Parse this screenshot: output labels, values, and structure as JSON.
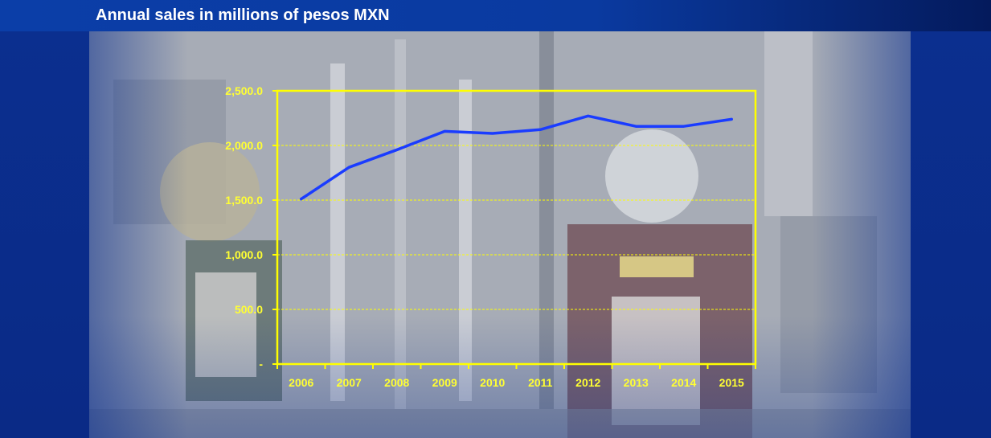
{
  "header": {
    "title": "Annual sales in millions of pesos MXN"
  },
  "colors": {
    "header_bg": "#0b3ea8",
    "axis": "#ffff00",
    "grid": "#ffff00",
    "line": "#1a3cff",
    "tick_text": "#ffff33"
  },
  "chart_data": {
    "type": "line",
    "title": "",
    "xlabel": "",
    "ylabel": "",
    "categories": [
      "2006",
      "2007",
      "2008",
      "2009",
      "2010",
      "2011",
      "2012",
      "2013",
      "2014",
      "2015"
    ],
    "series": [
      {
        "values": [
          1510,
          1800,
          1960,
          2130,
          2110,
          2145,
          2270,
          2175,
          2175,
          2240
        ]
      }
    ],
    "ylim": [
      0,
      2500
    ],
    "yticks": [
      0,
      500,
      1000,
      1500,
      2000,
      2500
    ],
    "ytick_labels": [
      "-",
      "500.0",
      "1,000.0",
      "1,500.0",
      "2,000.0",
      "2,500.0"
    ],
    "grid": true,
    "legend": "none"
  }
}
